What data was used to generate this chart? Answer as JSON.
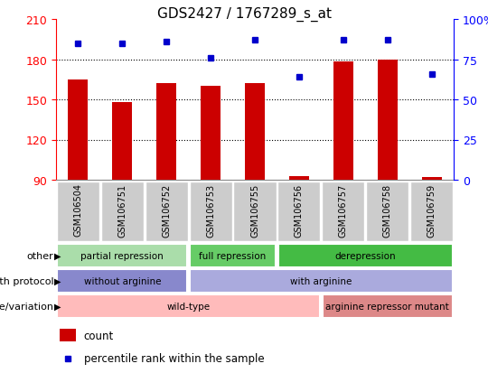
{
  "title": "GDS2427 / 1767289_s_at",
  "samples": [
    "GSM106504",
    "GSM106751",
    "GSM106752",
    "GSM106753",
    "GSM106755",
    "GSM106756",
    "GSM106757",
    "GSM106758",
    "GSM106759"
  ],
  "counts": [
    165,
    148,
    162,
    160,
    162,
    93,
    178,
    180,
    92
  ],
  "percentiles": [
    85,
    85,
    86,
    76,
    87,
    64,
    87,
    87,
    66
  ],
  "ylim_left": [
    90,
    210
  ],
  "ylim_right": [
    0,
    100
  ],
  "yticks_left": [
    90,
    120,
    150,
    180,
    210
  ],
  "yticks_right": [
    0,
    25,
    50,
    75,
    100
  ],
  "bar_color": "#cc0000",
  "dot_color": "#0000cc",
  "annotation_rows": [
    {
      "label": "other",
      "segments": [
        {
          "text": "partial repression",
          "start": 0,
          "end": 3,
          "color": "#aaddaa"
        },
        {
          "text": "full repression",
          "start": 3,
          "end": 5,
          "color": "#66cc66"
        },
        {
          "text": "derepression",
          "start": 5,
          "end": 9,
          "color": "#44bb44"
        }
      ]
    },
    {
      "label": "growth protocol",
      "segments": [
        {
          "text": "without arginine",
          "start": 0,
          "end": 3,
          "color": "#8888cc"
        },
        {
          "text": "with arginine",
          "start": 3,
          "end": 9,
          "color": "#aaaadd"
        }
      ]
    },
    {
      "label": "genotype/variation",
      "segments": [
        {
          "text": "wild-type",
          "start": 0,
          "end": 6,
          "color": "#ffbbbb"
        },
        {
          "text": "arginine repressor mutant",
          "start": 6,
          "end": 9,
          "color": "#dd8888"
        }
      ]
    }
  ],
  "legend_items": [
    {
      "color": "#cc0000",
      "marker": "s",
      "label": "count"
    },
    {
      "color": "#0000cc",
      "marker": "s",
      "label": "percentile rank within the sample"
    }
  ],
  "tick_label_bg": "#cccccc",
  "fig_width": 5.4,
  "fig_height": 4.14,
  "dpi": 100
}
